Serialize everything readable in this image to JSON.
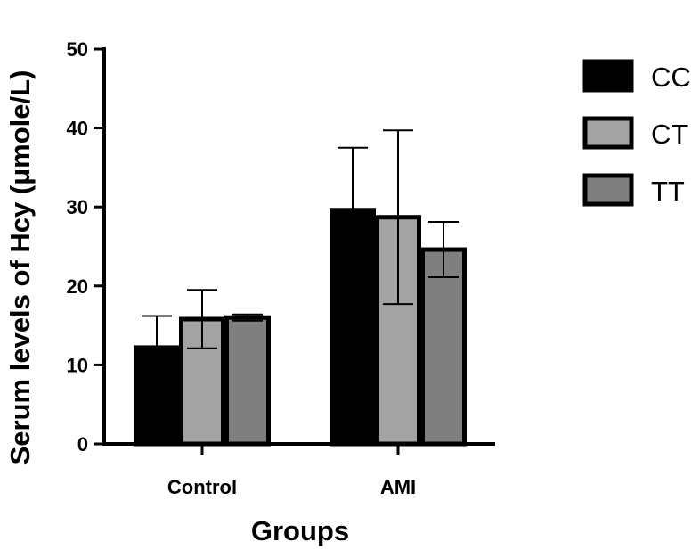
{
  "chart_data": {
    "type": "bar",
    "categories": [
      "Control",
      "AMI"
    ],
    "series": [
      {
        "name": "CC",
        "values": [
          12.2,
          29.6
        ],
        "errors": [
          4.0,
          7.9
        ],
        "color": "#000000"
      },
      {
        "name": "CT",
        "values": [
          15.8,
          28.7
        ],
        "errors": [
          3.7,
          11.0
        ],
        "color": "#a3a3a3"
      },
      {
        "name": "TT",
        "values": [
          16.0,
          24.6
        ],
        "errors": [
          0.4,
          3.5
        ],
        "color": "#7f7f7f"
      }
    ],
    "xlabel": "Groups",
    "ylabel": "Serum levels of Hcy (μmole/L)",
    "ylim": [
      0,
      50
    ],
    "yticks": [
      0,
      10,
      20,
      30,
      40,
      50
    ],
    "grid": false,
    "legend_position": "top-right"
  }
}
